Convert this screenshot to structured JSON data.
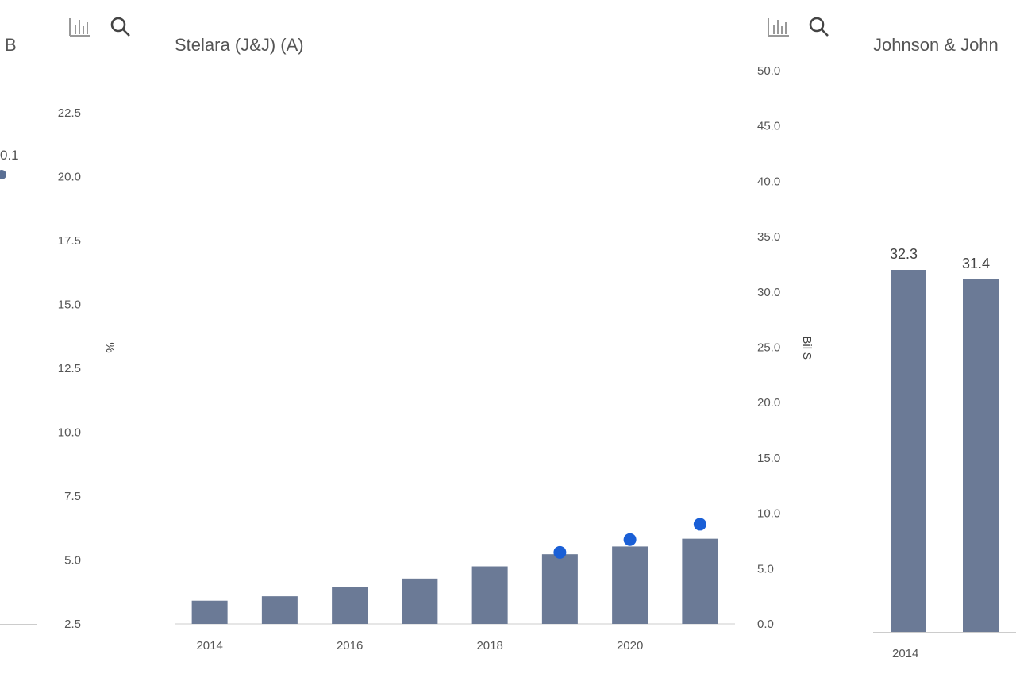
{
  "toolbar_left": {
    "chart_icon": "bar-chart-icon",
    "search_icon": "search-icon"
  },
  "toolbar_right": {
    "chart_icon": "bar-chart-icon",
    "search_icon": "search-icon"
  },
  "left_fragment": {
    "title_fragment": "B",
    "label_fragment": "0.1",
    "series_color": "#5a6f94"
  },
  "right_fragment": {
    "title_fragment": "Johnson & John",
    "bar_labels": [
      "32.3",
      "31.4"
    ],
    "x_label": "2014"
  },
  "colors": {
    "bar": "#6b7a96",
    "dot": "#1a5fd6",
    "axis": "#cccccc"
  },
  "chart_data": {
    "type": "bar",
    "title": "Stelara (J&J) (A)",
    "categories": [
      "2014",
      "2015",
      "2016",
      "2017",
      "2018",
      "2019",
      "2020",
      "2021"
    ],
    "x_tick_labels": [
      "2014",
      "2016",
      "2018",
      "2020"
    ],
    "series": [
      {
        "type": "bar",
        "axis": "right",
        "values": [
          2.1,
          2.5,
          3.3,
          4.1,
          5.2,
          6.3,
          7.0,
          7.7
        ]
      },
      {
        "type": "scatter",
        "axis": "left",
        "x": [
          "2019",
          "2020",
          "2021"
        ],
        "values": [
          5.3,
          5.8,
          6.4
        ]
      }
    ],
    "y_left": {
      "label": "%",
      "ticks": [
        "2.5",
        "5.0",
        "7.5",
        "10.0",
        "12.5",
        "15.0",
        "17.5",
        "20.0",
        "22.5"
      ],
      "range": [
        2.5,
        22.5
      ]
    },
    "y_right": {
      "label": "Bil $",
      "ticks": [
        "0.0",
        "5.0",
        "10.0",
        "15.0",
        "20.0",
        "25.0",
        "30.0",
        "35.0",
        "40.0",
        "45.0",
        "50.0"
      ],
      "range": [
        0,
        50
      ]
    }
  }
}
